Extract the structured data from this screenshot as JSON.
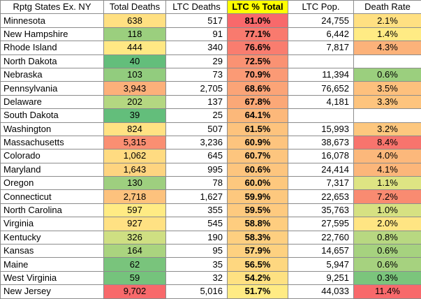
{
  "columns": [
    "Rptg States Ex. NY",
    "Total Deaths",
    "LTC Deaths",
    "LTC % Total",
    "LTC Pop.",
    "Death Rate"
  ],
  "highlight_column": 3,
  "rows": [
    {
      "state": "Minnesota",
      "total": "638",
      "ltc": "517",
      "pct": "81.0%",
      "pop": "24,755",
      "rate": "2.1%",
      "c_total": "#ffe082",
      "c_pct": "#f8696b",
      "c_rate": "#ffe082"
    },
    {
      "state": "New Hampshire",
      "total": "118",
      "ltc": "91",
      "pct": "77.1%",
      "pop": "6,442",
      "rate": "1.4%",
      "c_total": "#9bcf7e",
      "c_pct": "#f97a6e",
      "c_rate": "#ffeb84"
    },
    {
      "state": "Rhode Island",
      "total": "444",
      "ltc": "340",
      "pct": "76.6%",
      "pop": "7,817",
      "rate": "4.3%",
      "c_total": "#ffe884",
      "c_pct": "#f97d6f",
      "c_rate": "#fcb27a"
    },
    {
      "state": "North Dakota",
      "total": "40",
      "ltc": "29",
      "pct": "72.5%",
      "pop": "",
      "rate": "",
      "c_total": "#63be7b",
      "c_pct": "#fa9273",
      "c_rate": "#ffffff"
    },
    {
      "state": "Nebraska",
      "total": "103",
      "ltc": "73",
      "pct": "70.9%",
      "pop": "11,394",
      "rate": "0.6%",
      "c_total": "#92cc7e",
      "c_pct": "#fb9a75",
      "c_rate": "#9bcf7e"
    },
    {
      "state": "Pennsylvania",
      "total": "3,943",
      "ltc": "2,705",
      "pct": "68.6%",
      "pop": "76,652",
      "rate": "3.5%",
      "c_total": "#fcb07a",
      "c_pct": "#fba477",
      "c_rate": "#fdc07d"
    },
    {
      "state": "Delaware",
      "total": "202",
      "ltc": "137",
      "pct": "67.8%",
      "pop": "4,181",
      "rate": "3.3%",
      "c_total": "#b4d781",
      "c_pct": "#fba877",
      "c_rate": "#fdc47e"
    },
    {
      "state": "South Dakota",
      "total": "39",
      "ltc": "25",
      "pct": "64.1%",
      "pop": "",
      "rate": "",
      "c_total": "#63be7b",
      "c_pct": "#fcb87a",
      "c_rate": "#ffffff"
    },
    {
      "state": "Washington",
      "total": "824",
      "ltc": "507",
      "pct": "61.5%",
      "pop": "15,993",
      "rate": "3.2%",
      "c_total": "#ffe283",
      "c_pct": "#fdc37d",
      "c_rate": "#fdc77e"
    },
    {
      "state": "Massachusetts",
      "total": "5,315",
      "ltc": "3,236",
      "pct": "60.9%",
      "pop": "38,673",
      "rate": "8.4%",
      "c_total": "#fa8f72",
      "c_pct": "#fdc47e",
      "c_rate": "#f8746d"
    },
    {
      "state": "Colorado",
      "total": "1,062",
      "ltc": "645",
      "pct": "60.7%",
      "pop": "16,078",
      "rate": "4.0%",
      "c_total": "#ffdb81",
      "c_pct": "#fdc57e",
      "c_rate": "#fcb87b"
    },
    {
      "state": "Maryland",
      "total": "1,643",
      "ltc": "995",
      "pct": "60.6%",
      "pop": "24,414",
      "rate": "4.1%",
      "c_total": "#fed480",
      "c_pct": "#fdc57e",
      "c_rate": "#fcb67a"
    },
    {
      "state": "Oregon",
      "total": "130",
      "ltc": "78",
      "pct": "60.0%",
      "pop": "7,317",
      "rate": "1.1%",
      "c_total": "#9ecf7f",
      "c_pct": "#fdc87e",
      "c_rate": "#dee483"
    },
    {
      "state": "Connecticut",
      "total": "2,718",
      "ltc": "1,627",
      "pct": "59.9%",
      "pop": "22,653",
      "rate": "7.2%",
      "c_total": "#fdc27d",
      "c_pct": "#fdc87e",
      "c_rate": "#f98b71"
    },
    {
      "state": "North Carolina",
      "total": "597",
      "ltc": "355",
      "pct": "59.5%",
      "pop": "35,763",
      "rate": "1.0%",
      "c_total": "#ffeb84",
      "c_pct": "#feca7f",
      "c_rate": "#d6e182"
    },
    {
      "state": "Virginia",
      "total": "927",
      "ltc": "545",
      "pct": "58.8%",
      "pop": "27,595",
      "rate": "2.0%",
      "c_total": "#ffe183",
      "c_pct": "#fecd7f",
      "c_rate": "#ffe583"
    },
    {
      "state": "Kentucky",
      "total": "326",
      "ltc": "190",
      "pct": "58.3%",
      "pop": "22,760",
      "rate": "0.8%",
      "c_total": "#cfdf82",
      "c_pct": "#fecf80",
      "c_rate": "#b8d881"
    },
    {
      "state": "Kansas",
      "total": "164",
      "ltc": "95",
      "pct": "57.9%",
      "pop": "14,657",
      "rate": "0.6%",
      "c_total": "#aad47f",
      "c_pct": "#fed180",
      "c_rate": "#a6d27f"
    },
    {
      "state": "Maine",
      "total": "62",
      "ltc": "35",
      "pct": "56.5%",
      "pop": "5,947",
      "rate": "0.6%",
      "c_total": "#79c47c",
      "c_pct": "#fed780",
      "c_rate": "#a6d27f"
    },
    {
      "state": "West Virginia",
      "total": "59",
      "ltc": "32",
      "pct": "54.2%",
      "pop": "9,251",
      "rate": "0.3%",
      "c_total": "#75c37c",
      "c_pct": "#fee182",
      "c_rate": "#7bc57c"
    },
    {
      "state": "New Jersey",
      "total": "9,702",
      "ltc": "5,016",
      "pct": "51.7%",
      "pop": "44,033",
      "rate": "11.4%",
      "c_total": "#f8696b",
      "c_pct": "#ffeb84",
      "c_rate": "#f8696b"
    }
  ]
}
